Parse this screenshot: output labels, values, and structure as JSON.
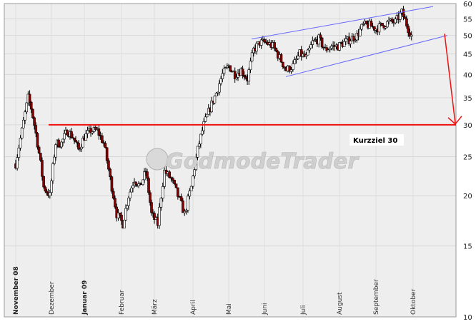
{
  "chart_data": {
    "type": "candlestick",
    "y_scale": "log",
    "ylim": [
      10,
      60
    ],
    "y_ticks": [
      10,
      15,
      20,
      25,
      30,
      35,
      40,
      45,
      50,
      55,
      60
    ],
    "x_ticks": [
      {
        "label": "November 08",
        "bold": true
      },
      {
        "label": "Dezember",
        "bold": false
      },
      {
        "label": "Januar 09",
        "bold": true
      },
      {
        "label": "Februar",
        "bold": false
      },
      {
        "label": "März",
        "bold": false
      },
      {
        "label": "April",
        "bold": false
      },
      {
        "label": "Mai",
        "bold": false
      },
      {
        "label": "Juni",
        "bold": false
      },
      {
        "label": "Juli",
        "bold": false
      },
      {
        "label": "August",
        "bold": false
      },
      {
        "label": "September",
        "bold": false
      },
      {
        "label": "Oktober",
        "bold": false
      }
    ],
    "price_path": [
      [
        0,
        24
      ],
      [
        4,
        29
      ],
      [
        8,
        35
      ],
      [
        10,
        33
      ],
      [
        14,
        27
      ],
      [
        18,
        21
      ],
      [
        22,
        20
      ],
      [
        26,
        27
      ],
      [
        30,
        27
      ],
      [
        34,
        29
      ],
      [
        38,
        28
      ],
      [
        42,
        26
      ],
      [
        46,
        28
      ],
      [
        50,
        29
      ],
      [
        54,
        29
      ],
      [
        58,
        27
      ],
      [
        62,
        22
      ],
      [
        66,
        18
      ],
      [
        70,
        17
      ],
      [
        74,
        20
      ],
      [
        78,
        22
      ],
      [
        82,
        21
      ],
      [
        86,
        23
      ],
      [
        90,
        18
      ],
      [
        94,
        17
      ],
      [
        98,
        23
      ],
      [
        102,
        22
      ],
      [
        106,
        20
      ],
      [
        110,
        18
      ],
      [
        114,
        21
      ],
      [
        118,
        26
      ],
      [
        122,
        30
      ],
      [
        126,
        33
      ],
      [
        130,
        36
      ],
      [
        134,
        40
      ],
      [
        138,
        42
      ],
      [
        142,
        40
      ],
      [
        146,
        41
      ],
      [
        150,
        39
      ],
      [
        154,
        46
      ],
      [
        158,
        48
      ],
      [
        162,
        48
      ],
      [
        166,
        47
      ],
      [
        170,
        44
      ],
      [
        174,
        41
      ],
      [
        178,
        42
      ],
      [
        182,
        45
      ],
      [
        186,
        44
      ],
      [
        190,
        48
      ],
      [
        194,
        49
      ],
      [
        198,
        46
      ],
      [
        202,
        47
      ],
      [
        206,
        47
      ],
      [
        210,
        48
      ],
      [
        214,
        49
      ],
      [
        218,
        50
      ],
      [
        222,
        53
      ],
      [
        226,
        53
      ],
      [
        230,
        52
      ],
      [
        234,
        53
      ],
      [
        238,
        54
      ],
      [
        242,
        54
      ],
      [
        246,
        57
      ],
      [
        250,
        52
      ],
      [
        252,
        50
      ]
    ],
    "resistance_trendline": [
      [
        "Juni",
        49
      ],
      [
        "Oktober",
        59
      ]
    ],
    "support_trendline": [
      [
        "Juni",
        39.5
      ],
      [
        "Oktober",
        50
      ]
    ],
    "horizontal_line": 30,
    "annotations": [
      {
        "text": "Kurzziel 30"
      }
    ],
    "watermark": "GodmodeTrader",
    "colors": {
      "up": "#ffffff",
      "down": "#8b0000",
      "wick": "#000000",
      "trend": "#6666ff",
      "target": "#ee1111",
      "plot_bg": "#eeeeee"
    }
  }
}
